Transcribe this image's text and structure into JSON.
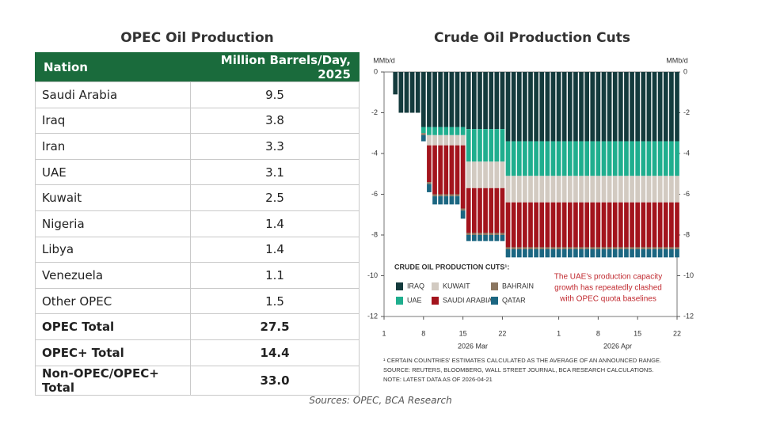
{
  "table": {
    "title": "OPEC Oil Production",
    "header": [
      "Nation",
      "Million Barrels/Day, 2025"
    ],
    "rows": [
      [
        "Saudi Arabia",
        "9.5"
      ],
      [
        "Iraq",
        "3.8"
      ],
      [
        "Iran",
        "3.3"
      ],
      [
        "UAE",
        "3.1"
      ],
      [
        "Kuwait",
        "2.5"
      ],
      [
        "Nigeria",
        "1.4"
      ],
      [
        "Libya",
        "1.4"
      ],
      [
        "Venezuela",
        "1.1"
      ],
      [
        "Other OPEC",
        "1.5"
      ]
    ],
    "totals": [
      [
        "OPEC Total",
        "27.5"
      ],
      [
        "OPEC+ Total",
        "14.4"
      ],
      [
        "Non-OPEC/OPEC+ Total",
        "33.0"
      ]
    ]
  },
  "sources": "Sources: OPEC, BCA Research",
  "chart_data": {
    "type": "stacked-bar",
    "title": "Crude Oil Production Cuts",
    "ylabel": "MMb/d",
    "y2label": "MMb/d",
    "x": [
      3,
      4,
      5,
      6,
      7,
      8,
      9,
      10,
      11,
      12,
      13,
      14,
      15,
      16,
      17,
      18,
      19,
      20,
      21,
      22,
      23,
      24,
      25,
      26,
      27,
      28,
      29,
      30,
      31,
      32,
      33,
      34,
      35,
      36,
      37,
      38,
      39,
      40,
      41,
      42,
      43,
      44,
      45,
      46,
      47,
      48,
      49,
      50,
      51,
      52,
      53
    ],
    "xlim": [
      1,
      53
    ],
    "xticks": [
      1,
      8,
      15,
      22,
      {
        "value": 32,
        "label": "1"
      },
      {
        "value": 39,
        "label": "8"
      },
      {
        "value": 46,
        "label": "15"
      },
      {
        "value": 53,
        "label": "22"
      }
    ],
    "month_labels": [
      "2026 Mar",
      "2026 Apr"
    ],
    "ylim": [
      -12,
      0
    ],
    "yticks": [
      -12,
      -10,
      -8,
      -6,
      -4,
      -2,
      0
    ],
    "y2lim": [
      -12,
      0
    ],
    "y2ticks": [
      -12,
      -10,
      -8,
      -6,
      -4,
      -2,
      0
    ],
    "legend_title": "CRUDE OIL PRODUCTION CUTS¹:",
    "series": [
      {
        "name": "IRAQ",
        "color": "#143b3d",
        "values": [
          -1.1,
          -2,
          -2,
          -2,
          -2,
          -2.7,
          -2.7,
          -2.7,
          -2.7,
          -2.7,
          -2.7,
          -2.7,
          -2.7,
          -2.8,
          -2.8,
          -2.8,
          -2.8,
          -2.8,
          -2.8,
          -2.8,
          -3.4,
          -3.4,
          -3.4,
          -3.4,
          -3.4,
          -3.4,
          -3.4,
          -3.4,
          -3.4,
          -3.4,
          -3.4,
          -3.4,
          -3.4,
          -3.4,
          -3.4,
          -3.4,
          -3.4,
          -3.4,
          -3.4,
          -3.4,
          -3.4,
          -3.4,
          -3.4,
          -3.4,
          -3.4,
          -3.4,
          -3.4,
          -3.4,
          -3.4,
          -3.4,
          -3.4
        ]
      },
      {
        "name": "UAE",
        "color": "#1fae8e",
        "values": [
          null,
          null,
          null,
          null,
          null,
          -0.3,
          -0.4,
          -0.4,
          -0.4,
          -0.4,
          -0.4,
          -0.4,
          -0.4,
          -1.6,
          -1.6,
          -1.6,
          -1.6,
          -1.6,
          -1.6,
          -1.6,
          -1.7,
          -1.7,
          -1.7,
          -1.7,
          -1.7,
          -1.7,
          -1.7,
          -1.7,
          -1.7,
          -1.7,
          -1.7,
          -1.7,
          -1.7,
          -1.7,
          -1.7,
          -1.7,
          -1.7,
          -1.7,
          -1.7,
          -1.7,
          -1.7,
          -1.7,
          -1.7,
          -1.7,
          -1.7,
          -1.7,
          -1.7,
          -1.7,
          -1.7,
          -1.7,
          -1.7
        ]
      },
      {
        "name": "KUWAIT",
        "color": "#d2cac1",
        "values": [
          null,
          null,
          null,
          null,
          null,
          null,
          -0.5,
          -0.5,
          -0.5,
          -0.5,
          -0.5,
          -0.5,
          -0.5,
          -1.3,
          -1.3,
          -1.3,
          -1.3,
          -1.3,
          -1.3,
          -1.3,
          -1.3,
          -1.3,
          -1.3,
          -1.3,
          -1.3,
          -1.3,
          -1.3,
          -1.3,
          -1.3,
          -1.3,
          -1.3,
          -1.3,
          -1.3,
          -1.3,
          -1.3,
          -1.3,
          -1.3,
          -1.3,
          -1.3,
          -1.3,
          -1.3,
          -1.3,
          -1.3,
          -1.3,
          -1.3,
          -1.3,
          -1.3,
          -1.3,
          -1.3,
          -1.3,
          -1.3
        ]
      },
      {
        "name": "SAUDI ARABIA",
        "color": "#a3141d",
        "values": [
          null,
          null,
          null,
          null,
          null,
          null,
          -1.8,
          -2.4,
          -2.4,
          -2.4,
          -2.4,
          -2.4,
          -3.1,
          -2.2,
          -2.2,
          -2.2,
          -2.2,
          -2.2,
          -2.2,
          -2.2,
          -2.2,
          -2.2,
          -2.2,
          -2.2,
          -2.2,
          -2.2,
          -2.2,
          -2.2,
          -2.2,
          -2.2,
          -2.2,
          -2.2,
          -2.2,
          -2.2,
          -2.2,
          -2.2,
          -2.2,
          -2.2,
          -2.2,
          -2.2,
          -2.2,
          -2.2,
          -2.2,
          -2.2,
          -2.2,
          -2.2,
          -2.2,
          -2.2,
          -2.2,
          -2.2,
          -2.2
        ]
      },
      {
        "name": "BAHRAIN",
        "color": "#8b7660",
        "values": [
          null,
          null,
          null,
          null,
          null,
          -0.1,
          -0.1,
          -0.1,
          -0.1,
          -0.1,
          -0.1,
          -0.1,
          -0.1,
          -0.1,
          -0.1,
          -0.1,
          -0.1,
          -0.1,
          -0.1,
          -0.1,
          -0.1,
          -0.1,
          -0.1,
          -0.1,
          -0.1,
          -0.1,
          -0.1,
          -0.1,
          -0.1,
          -0.1,
          -0.1,
          -0.1,
          -0.1,
          -0.1,
          -0.1,
          -0.1,
          -0.1,
          -0.1,
          -0.1,
          -0.1,
          -0.1,
          -0.1,
          -0.1,
          -0.1,
          -0.1,
          -0.1,
          -0.1,
          -0.1,
          -0.1,
          -0.1,
          -0.1
        ]
      },
      {
        "name": "QATAR",
        "color": "#1b6681",
        "values": [
          null,
          null,
          null,
          null,
          null,
          -0.3,
          -0.4,
          -0.4,
          -0.4,
          -0.4,
          -0.4,
          -0.4,
          -0.4,
          -0.3,
          -0.3,
          -0.3,
          -0.3,
          -0.3,
          -0.3,
          -0.3,
          -0.4,
          -0.4,
          -0.4,
          -0.4,
          -0.4,
          -0.4,
          -0.4,
          -0.4,
          -0.4,
          -0.4,
          -0.4,
          -0.4,
          -0.4,
          -0.4,
          -0.4,
          -0.4,
          -0.4,
          -0.4,
          -0.4,
          -0.4,
          -0.4,
          -0.4,
          -0.4,
          -0.4,
          -0.4,
          -0.4,
          -0.4,
          -0.4,
          -0.4,
          -0.4,
          -0.4
        ]
      }
    ],
    "annotation": [
      "The UAE's production capacity",
      "growth has repeatedly clashed",
      "with OPEC quota baselines"
    ],
    "notes": [
      "¹ CERTAIN COUNTRIES' ESTIMATES CALCULATED AS THE AVERAGE OF AN ANNOUNCED RANGE.",
      "SOURCE: REUTERS, BLOOMBERG, WALL STREET JOURNAL, BCA RESEARCH CALCULATIONS.",
      "NOTE: LATEST DATA AS OF 2026-04-21"
    ]
  }
}
